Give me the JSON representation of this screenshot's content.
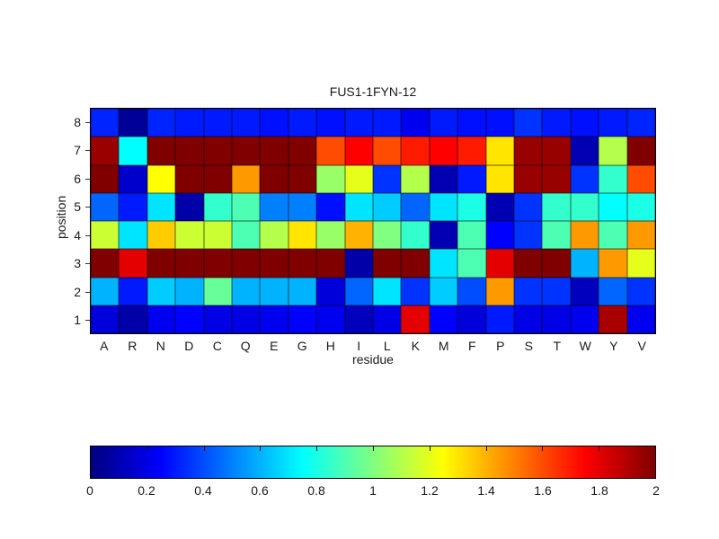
{
  "chart_data": {
    "type": "heatmap",
    "title": "FUS1-1FYN-12",
    "xlabel": "residue",
    "ylabel": "position",
    "x_categories": [
      "A",
      "R",
      "N",
      "D",
      "C",
      "Q",
      "E",
      "G",
      "H",
      "I",
      "L",
      "K",
      "M",
      "F",
      "P",
      "S",
      "T",
      "W",
      "Y",
      "V"
    ],
    "y_categories_top_to_bottom": [
      "8",
      "7",
      "6",
      "5",
      "4",
      "3",
      "2",
      "1"
    ],
    "values_rows_top_to_bottom": [
      [
        0.32,
        0.05,
        0.32,
        0.3,
        0.3,
        0.3,
        0.28,
        0.3,
        0.28,
        0.3,
        0.3,
        0.22,
        0.3,
        0.28,
        0.28,
        0.35,
        0.3,
        0.28,
        0.3,
        0.32
      ],
      [
        1.95,
        0.75,
        2.0,
        2.0,
        2.0,
        2.0,
        2.0,
        2.0,
        1.6,
        1.75,
        1.6,
        1.7,
        1.75,
        1.7,
        1.3,
        1.95,
        1.95,
        0.1,
        1.1,
        2.0
      ],
      [
        2.0,
        0.15,
        1.25,
        2.0,
        2.0,
        1.45,
        2.0,
        2.0,
        1.05,
        1.2,
        0.35,
        1.1,
        0.1,
        0.3,
        1.3,
        1.95,
        1.95,
        0.35,
        0.85,
        1.6
      ],
      [
        0.45,
        0.3,
        0.7,
        0.08,
        0.85,
        0.9,
        0.5,
        0.5,
        0.28,
        0.7,
        0.65,
        0.45,
        0.7,
        0.8,
        0.1,
        0.35,
        0.85,
        0.85,
        0.75,
        0.8
      ],
      [
        1.15,
        0.7,
        1.35,
        1.15,
        1.15,
        0.9,
        1.1,
        1.3,
        1.05,
        1.4,
        1.0,
        0.85,
        0.1,
        0.9,
        0.25,
        0.35,
        0.9,
        1.45,
        0.9,
        1.45
      ],
      [
        2.0,
        1.8,
        2.0,
        2.0,
        2.0,
        2.0,
        2.0,
        2.0,
        2.0,
        0.08,
        2.0,
        2.0,
        0.7,
        0.9,
        1.8,
        2.0,
        2.0,
        0.6,
        1.45,
        1.2
      ],
      [
        0.6,
        0.3,
        0.65,
        0.6,
        0.95,
        0.6,
        0.6,
        0.6,
        0.18,
        0.45,
        0.7,
        0.35,
        0.65,
        0.4,
        1.45,
        0.35,
        0.35,
        0.12,
        0.45,
        0.35
      ],
      [
        0.18,
        0.08,
        0.22,
        0.25,
        0.2,
        0.2,
        0.22,
        0.25,
        0.22,
        0.12,
        0.2,
        1.8,
        0.25,
        0.18,
        0.3,
        0.2,
        0.2,
        0.22,
        1.92,
        0.22
      ]
    ],
    "colorbar": {
      "min": 0,
      "max": 2,
      "tick_labels": [
        "0",
        "0.2",
        "0.4",
        "0.6",
        "0.8",
        "1",
        "1.2",
        "1.4",
        "1.6",
        "1.8",
        "2"
      ],
      "colormap": "jet",
      "min_color": "#000080",
      "max_color": "#800000"
    },
    "value_range": [
      0,
      2
    ],
    "grid": true,
    "legend_position": "bottom-colorbar"
  }
}
